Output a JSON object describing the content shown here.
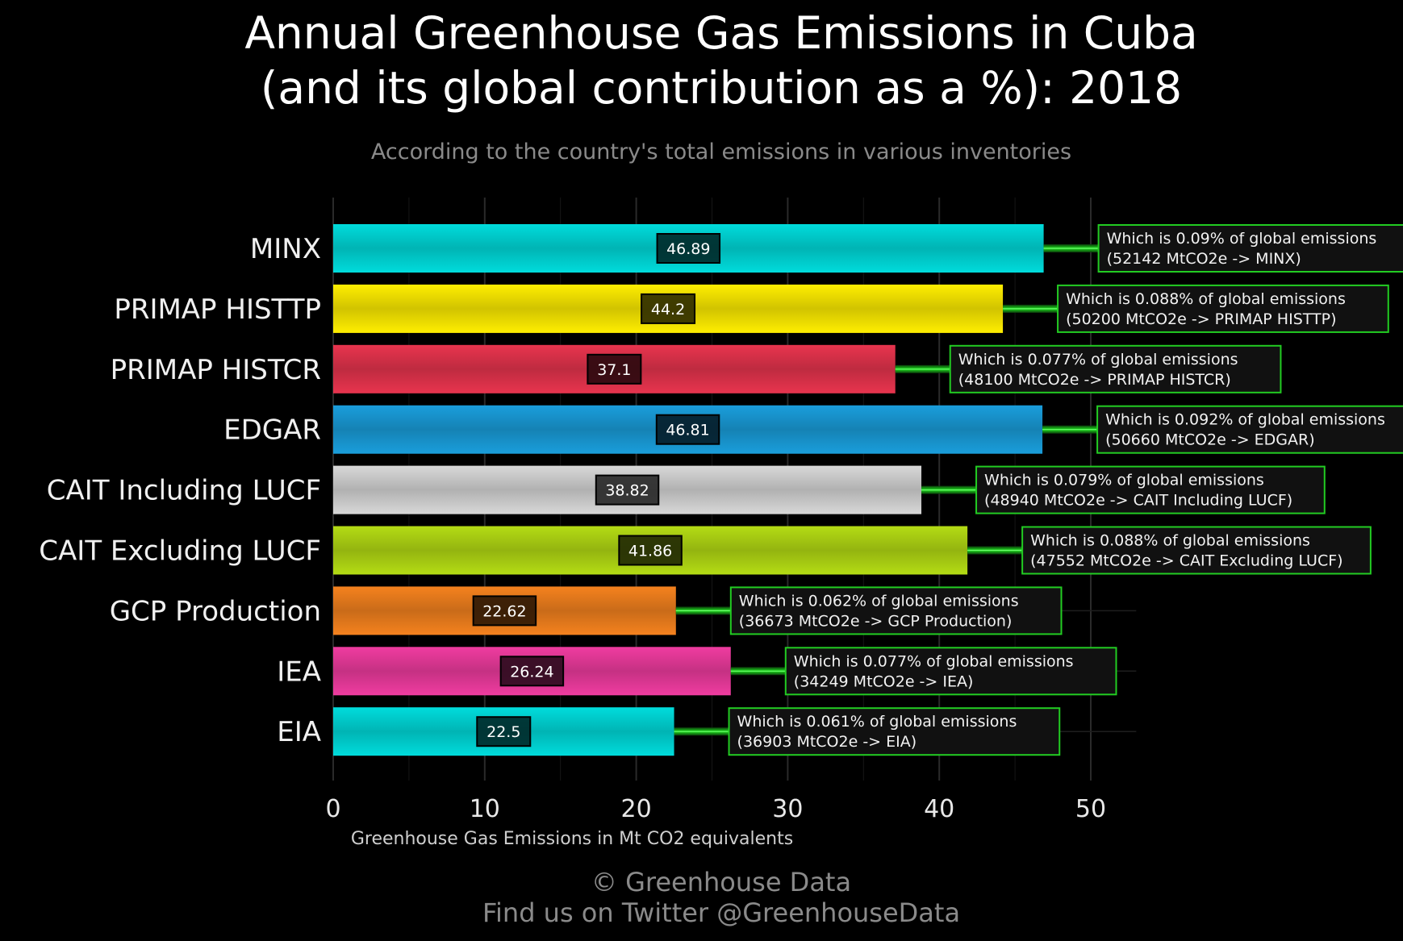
{
  "header": {
    "title_line1": "Annual Greenhouse Gas Emissions in Cuba",
    "title_line2": "(and its global contribution as a %): 2018",
    "subtitle": "According to the country's total emissions in various inventories"
  },
  "footer": {
    "copyright": "© Greenhouse Data",
    "twitter": "Find us on Twitter @GreenhouseData"
  },
  "chart_data": {
    "type": "bar",
    "orientation": "horizontal",
    "categories": [
      "MINX",
      "PRIMAP HISTTP",
      "PRIMAP HISTCR",
      "EDGAR",
      "CAIT Including LUCF",
      "CAIT Excluding LUCF",
      "GCP Production",
      "IEA",
      "EIA"
    ],
    "values": [
      46.89,
      44.2,
      37.1,
      46.81,
      38.82,
      41.86,
      22.62,
      26.24,
      22.5
    ],
    "value_labels": [
      "46.89",
      "44.2",
      "37.1",
      "46.81",
      "38.82",
      "41.86",
      "22.62",
      "26.24",
      "22.5"
    ],
    "colors": [
      "#00dcdc",
      "#ffee00",
      "#e8344e",
      "#1a9edc",
      "#d8d8d8",
      "#b4dc14",
      "#f5821e",
      "#f03ca0",
      "#00dcdc"
    ],
    "annotations": [
      {
        "line1": "Which is 0.09% of global emissions",
        "line2": "(52142 MtCO2e -> MINX)"
      },
      {
        "line1": "Which is 0.088% of global emissions",
        "line2": "(50200 MtCO2e -> PRIMAP HISTTP)"
      },
      {
        "line1": "Which is 0.077% of global emissions",
        "line2": "(48100 MtCO2e -> PRIMAP HISTCR)"
      },
      {
        "line1": "Which is 0.092% of global emissions",
        "line2": "(50660 MtCO2e -> EDGAR)"
      },
      {
        "line1": "Which is 0.079% of global emissions",
        "line2": "(48940 MtCO2e -> CAIT Including LUCF)"
      },
      {
        "line1": "Which is 0.088% of global emissions",
        "line2": "(47552 MtCO2e -> CAIT Excluding LUCF)"
      },
      {
        "line1": "Which is 0.062% of global emissions",
        "line2": "(36673 MtCO2e -> GCP Production)"
      },
      {
        "line1": "Which is 0.077% of global emissions",
        "line2": "(34249 MtCO2e -> IEA)"
      },
      {
        "line1": "Which is 0.061% of global emissions",
        "line2": "(36903 MtCO2e -> EIA)"
      }
    ],
    "xlabel": "Greenhouse Gas Emissions in Mt CO2 equivalents",
    "xlim": [
      0,
      53
    ],
    "xticks": [
      0,
      10,
      20,
      30,
      40,
      50
    ],
    "xtick_labels": [
      "0",
      "10",
      "20",
      "30",
      "40",
      "50"
    ],
    "grid": true,
    "annotation_border_color": "#22cc22",
    "background": "#000000"
  }
}
